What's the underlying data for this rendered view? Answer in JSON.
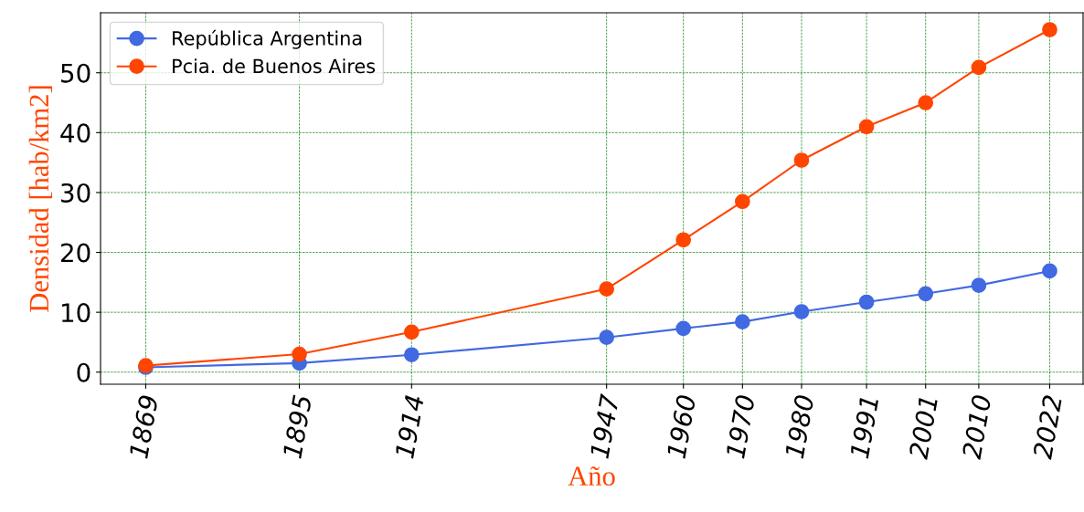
{
  "chart_data": {
    "type": "line",
    "xlabel": "Año",
    "ylabel": "Densidad [hab/km2]",
    "x": [
      1869,
      1895,
      1914,
      1947,
      1960,
      1970,
      1980,
      1991,
      2001,
      2010,
      2022
    ],
    "series": [
      {
        "name": "República Argentina",
        "color": "#4169e1",
        "values": [
          0.8,
          1.5,
          2.9,
          5.8,
          7.3,
          8.4,
          10.1,
          11.7,
          13.1,
          14.5,
          16.9
        ]
      },
      {
        "name": "Pcia. de Buenos Aires",
        "color": "#ff4500",
        "values": [
          1.1,
          3.0,
          6.7,
          13.9,
          22.1,
          28.5,
          35.4,
          41.0,
          45.0,
          50.9,
          57.2
        ]
      }
    ],
    "xlim": [
      1861.35,
      2027.65
    ],
    "xticks": [
      1869,
      1895,
      1914,
      1947,
      1960,
      1970,
      1980,
      1991,
      2001,
      2010,
      2022
    ],
    "ylim": [
      -2.02,
      60.02
    ],
    "yticks": [
      0,
      10,
      20,
      30,
      40,
      50
    ],
    "grid": true,
    "legend": "top left",
    "marker": "circle",
    "line_style": "solid"
  }
}
